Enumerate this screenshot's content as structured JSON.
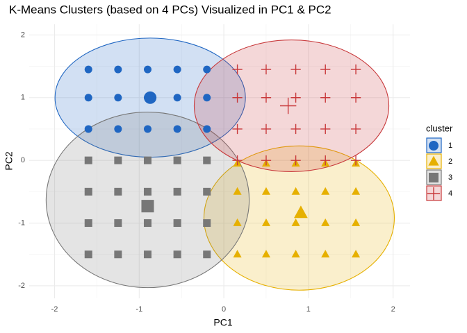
{
  "chart_data": {
    "type": "scatter",
    "title": "K-Means Clusters (based on 4 PCs) Visualized in PC1 & PC2",
    "xlabel": "PC1",
    "ylabel": "PC2",
    "xlim": [
      -2.3,
      2.2
    ],
    "ylim": [
      -2.2,
      2.17
    ],
    "xticks": [
      -2,
      -1,
      0,
      1,
      2
    ],
    "yticks": [
      -2,
      -1,
      0,
      1,
      2
    ],
    "grid": true,
    "legend_title": "cluster",
    "legend_position": "right",
    "series": [
      {
        "name": "1",
        "color": "#1f66c2",
        "shape": "circle",
        "x": [
          -1.6,
          -1.25,
          -0.9,
          -0.55,
          -0.2,
          -1.6,
          -1.25,
          -0.9,
          -0.55,
          -0.2,
          -1.6,
          -1.25,
          -0.9,
          -0.55,
          -0.2
        ],
        "y": [
          1.45,
          1.45,
          1.45,
          1.45,
          1.45,
          1.0,
          1.0,
          1.0,
          1.0,
          1.0,
          0.5,
          0.5,
          0.5,
          0.5,
          0.5
        ],
        "centroid": {
          "x": -0.87,
          "y": 1.0
        },
        "ellipse": {
          "cx": -0.87,
          "cy": 1.0,
          "rx": 1.125,
          "ry": 0.95
        }
      },
      {
        "name": "2",
        "color": "#e6b000",
        "shape": "triangle",
        "x": [
          0.16,
          0.5,
          0.85,
          1.2,
          1.56,
          0.16,
          0.5,
          0.85,
          1.2,
          1.56,
          0.16,
          0.5,
          0.85,
          1.2,
          1.56,
          0.16,
          0.5,
          0.85,
          1.2,
          1.56
        ],
        "y": [
          -0.05,
          -0.05,
          -0.05,
          -0.05,
          -0.05,
          -0.5,
          -0.5,
          -0.5,
          -0.5,
          -0.5,
          -1.0,
          -1.0,
          -1.0,
          -1.0,
          -1.0,
          -1.5,
          -1.5,
          -1.5,
          -1.5,
          -1.5
        ],
        "centroid": {
          "x": 0.91,
          "y": -0.84
        },
        "ellipse": {
          "cx": 0.89,
          "cy": -0.92,
          "rx": 1.125,
          "ry": 1.15
        }
      },
      {
        "name": "3",
        "color": "#777777",
        "shape": "square",
        "x": [
          -1.6,
          -1.25,
          -0.9,
          -0.55,
          -0.2,
          -1.6,
          -1.25,
          -0.9,
          -0.55,
          -0.2,
          -1.6,
          -1.25,
          -0.9,
          -0.55,
          -0.2,
          -1.6,
          -1.25,
          -0.9,
          -0.55,
          -0.2
        ],
        "y": [
          0,
          0,
          0,
          0,
          0,
          -0.5,
          -0.5,
          -0.5,
          -0.5,
          -0.5,
          -1.0,
          -1.0,
          -1.0,
          -1.0,
          -1.0,
          -1.5,
          -1.5,
          -1.5,
          -1.5,
          -1.5
        ],
        "centroid": {
          "x": -0.9,
          "y": -0.73
        },
        "ellipse": {
          "cx": -0.9,
          "cy": -0.63,
          "rx": 1.2,
          "ry": 1.4
        }
      },
      {
        "name": "4",
        "color": "#c8393b",
        "shape": "plus",
        "x": [
          0.16,
          0.5,
          0.85,
          1.2,
          1.56,
          0.16,
          0.5,
          0.85,
          1.2,
          1.56,
          0.16,
          0.5,
          0.85,
          1.2,
          1.56,
          0.16,
          0.5,
          0.85,
          1.2,
          1.56
        ],
        "y": [
          1.45,
          1.45,
          1.45,
          1.45,
          1.45,
          1.0,
          1.0,
          1.0,
          1.0,
          1.0,
          0.5,
          0.5,
          0.5,
          0.5,
          0.5,
          0.0,
          0.0,
          0.0,
          0.0,
          0.0
        ],
        "centroid": {
          "x": 0.76,
          "y": 0.87
        },
        "ellipse": {
          "cx": 0.8,
          "cy": 0.87,
          "rx": 1.15,
          "ry": 1.05
        }
      }
    ]
  }
}
